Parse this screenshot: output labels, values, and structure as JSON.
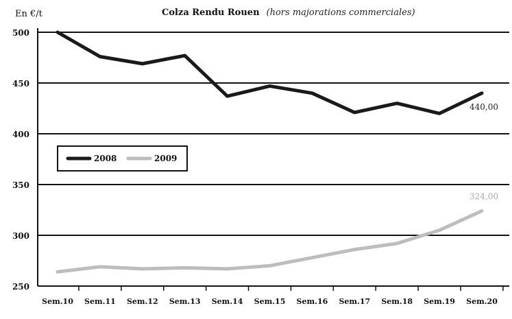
{
  "chart_data": {
    "type": "line",
    "title": "Colza Rendu Rouen",
    "subtitle": "(hors majorations commerciales)",
    "ylabel": "En €/t",
    "xlabel": "",
    "categories": [
      "Sem.10",
      "Sem.11",
      "Sem.12",
      "Sem.13",
      "Sem.14",
      "Sem.15",
      "Sem.16",
      "Sem.17",
      "Sem.18",
      "Sem.19",
      "Sem.20"
    ],
    "ylim": [
      250,
      500
    ],
    "yticks": [
      250,
      300,
      350,
      400,
      450,
      500
    ],
    "grid": true,
    "legend": "upper-left",
    "series": [
      {
        "name": "2008",
        "color": "#1a1a1a",
        "values": [
          500,
          476,
          469,
          477,
          437,
          447,
          440,
          421,
          430,
          420,
          440
        ],
        "end_label": "440,00"
      },
      {
        "name": "2009",
        "color": "#bdbdbd",
        "values": [
          264,
          269,
          267,
          268,
          267,
          270,
          278,
          286,
          292,
          305,
          324
        ],
        "end_label": "324,00"
      }
    ]
  }
}
